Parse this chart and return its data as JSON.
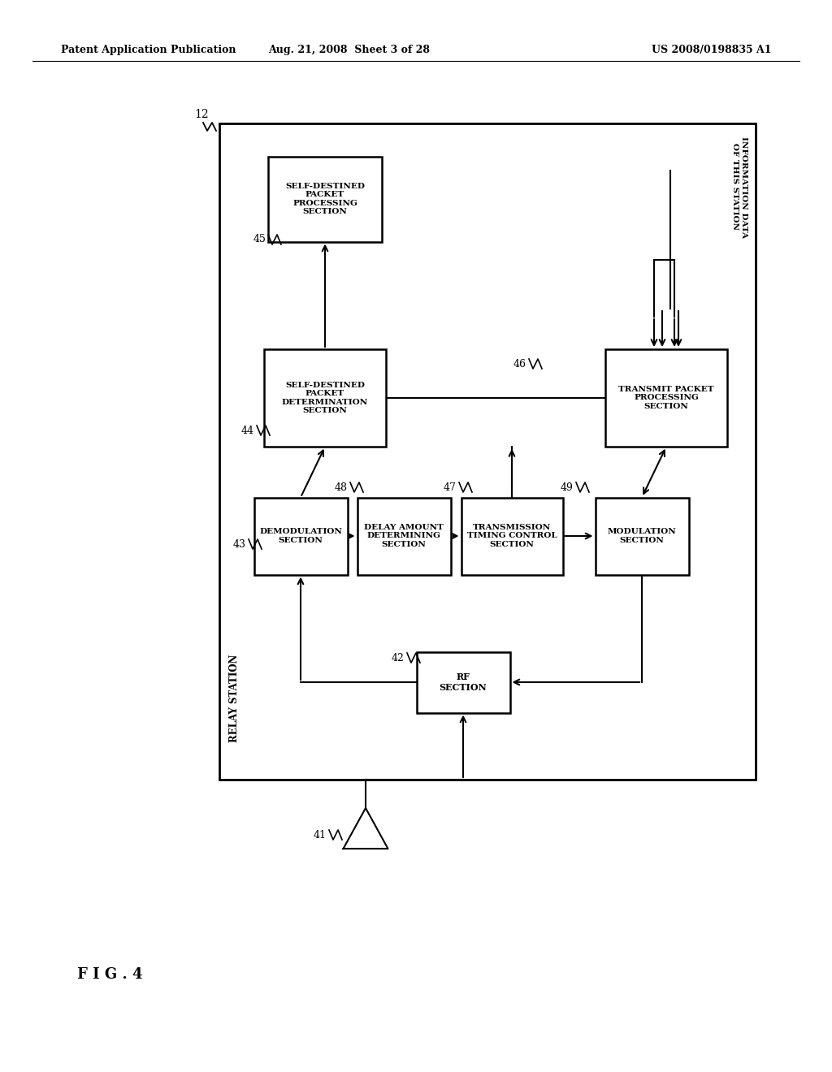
{
  "title_left": "Patent Application Publication",
  "title_mid": "Aug. 21, 2008  Sheet 3 of 28",
  "title_right": "US 2008/0198835 A1",
  "fig_label": "F I G . 4",
  "bg_color": "#ffffff",
  "line_color": "#000000"
}
